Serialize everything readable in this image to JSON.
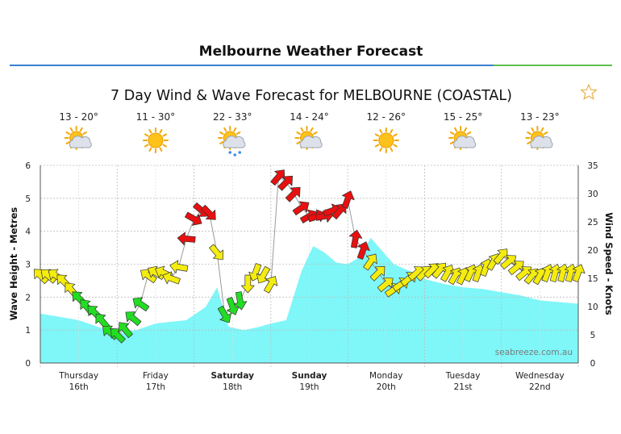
{
  "page": {
    "title": "Melbourne Weather Forecast",
    "favourite_icon": "star-outline-icon"
  },
  "colors": {
    "wave_fill": "#7ff6f8",
    "wind_red": "#e81010",
    "wind_yellow": "#f4ec10",
    "wind_green": "#22dd22",
    "header_blue": "#3a7fd0",
    "header_green": "#5fbf4c"
  },
  "chart_data": {
    "type": "area",
    "title": "7 Day Wind & Wave Forecast for MELBOURNE (COASTAL)",
    "watermark": "seabreeze.com.au",
    "y_left": {
      "label": "Wave Height - Metres",
      "range": [
        0,
        6
      ],
      "ticks": [
        "0",
        "1",
        "2",
        "3",
        "4",
        "5",
        "6"
      ]
    },
    "y_right": {
      "label": "Wind Speed - Knots",
      "range": [
        0,
        35
      ],
      "ticks": [
        "0",
        "5",
        "10",
        "15",
        "20",
        "25",
        "30",
        "35"
      ]
    },
    "grid": true,
    "days": [
      {
        "day": "Thursday",
        "date": "16th",
        "temps": "13 - 20°",
        "icon": "sun-cloud-icon",
        "bold": false
      },
      {
        "day": "Friday",
        "date": "17th",
        "temps": "11 - 30°",
        "icon": "sun-icon",
        "bold": false
      },
      {
        "day": "Saturday",
        "date": "18th",
        "temps": "22 - 33°",
        "icon": "sun-cloud-rain-icon",
        "bold": true
      },
      {
        "day": "Sunday",
        "date": "19th",
        "temps": "14 - 24°",
        "icon": "sun-cloud-icon",
        "bold": true
      },
      {
        "day": "Monday",
        "date": "20th",
        "temps": "12 - 26°",
        "icon": "sun-icon",
        "bold": false
      },
      {
        "day": "Tuesday",
        "date": "21st",
        "temps": "15 - 25°",
        "icon": "sun-cloud-icon",
        "bold": false
      },
      {
        "day": "Wednesday",
        "date": "22nd",
        "temps": "13 - 23°",
        "icon": "sun-cloud-icon",
        "bold": false
      }
    ],
    "wave_height": {
      "x_days": [
        0,
        0.25,
        0.5,
        0.75,
        1.0,
        1.25,
        1.5,
        1.9,
        2.15,
        2.3,
        2.45,
        2.65,
        2.85,
        3.0,
        3.1,
        3.2,
        3.4,
        3.55,
        3.7,
        3.85,
        4.0,
        4.15,
        4.3,
        4.45,
        4.6,
        4.8,
        5.0,
        5.25,
        5.5,
        5.75,
        6.0,
        6.25,
        6.5,
        6.75,
        7.0
      ],
      "metres": [
        1.5,
        1.4,
        1.3,
        1.1,
        0.9,
        1.0,
        1.2,
        1.3,
        1.7,
        2.3,
        1.1,
        1.0,
        1.1,
        1.2,
        1.25,
        1.3,
        2.8,
        3.55,
        3.35,
        3.05,
        3.0,
        3.2,
        3.8,
        3.4,
        3.0,
        2.8,
        2.55,
        2.4,
        2.3,
        2.25,
        2.15,
        2.05,
        1.9,
        1.85,
        1.8
      ]
    },
    "wind": {
      "x_days": [
        0.0,
        0.1,
        0.2,
        0.3,
        0.4,
        0.5,
        0.6,
        0.7,
        0.8,
        0.9,
        1.0,
        1.1,
        1.2,
        1.3,
        1.4,
        1.5,
        1.6,
        1.7,
        1.8,
        1.9,
        2.0,
        2.1,
        2.2,
        2.3,
        2.4,
        2.5,
        2.6,
        2.7,
        2.8,
        2.9,
        3.0,
        3.1,
        3.2,
        3.3,
        3.4,
        3.5,
        3.6,
        3.7,
        3.8,
        3.9,
        4.0,
        4.1,
        4.2,
        4.3,
        4.4,
        4.5,
        4.6,
        4.7,
        4.8,
        4.9,
        5.0,
        5.1,
        5.2,
        5.3,
        5.4,
        5.5,
        5.6,
        5.7,
        5.8,
        5.9,
        6.0,
        6.1,
        6.2,
        6.3,
        6.4,
        6.5,
        6.6,
        6.7,
        6.8,
        6.9,
        7.0
      ],
      "knots": [
        15.5,
        15.5,
        15.5,
        14.5,
        13,
        11.5,
        10,
        9,
        7.5,
        5.5,
        5,
        6,
        8,
        10.5,
        15.5,
        16,
        16,
        15,
        17,
        22,
        25.5,
        27,
        26.5,
        19.5,
        8.5,
        10,
        11,
        14,
        16,
        15.5,
        14,
        33,
        32,
        30,
        27.5,
        26,
        26,
        26,
        27,
        27,
        29,
        22,
        20,
        18,
        16,
        14,
        13,
        14,
        15,
        16,
        16,
        16.5,
        16.5,
        16,
        15.5,
        15.5,
        16,
        16,
        17,
        18,
        19,
        18,
        17,
        16,
        15.5,
        15.5,
        16,
        16,
        16,
        16,
        16
      ],
      "direction_deg": [
        135,
        130,
        125,
        135,
        140,
        135,
        140,
        135,
        140,
        130,
        135,
        140,
        130,
        125,
        125,
        120,
        115,
        110,
        100,
        95,
        300,
        310,
        315,
        320,
        330,
        340,
        350,
        0,
        20,
        30,
        210,
        220,
        225,
        225,
        235,
        240,
        250,
        260,
        250,
        220,
        200,
        190,
        200,
        215,
        225,
        230,
        235,
        235,
        230,
        230,
        225,
        225,
        220,
        210,
        210,
        205,
        205,
        200,
        200,
        210,
        220,
        230,
        230,
        230,
        220,
        210,
        200,
        195,
        195,
        195,
        200
      ]
    }
  }
}
